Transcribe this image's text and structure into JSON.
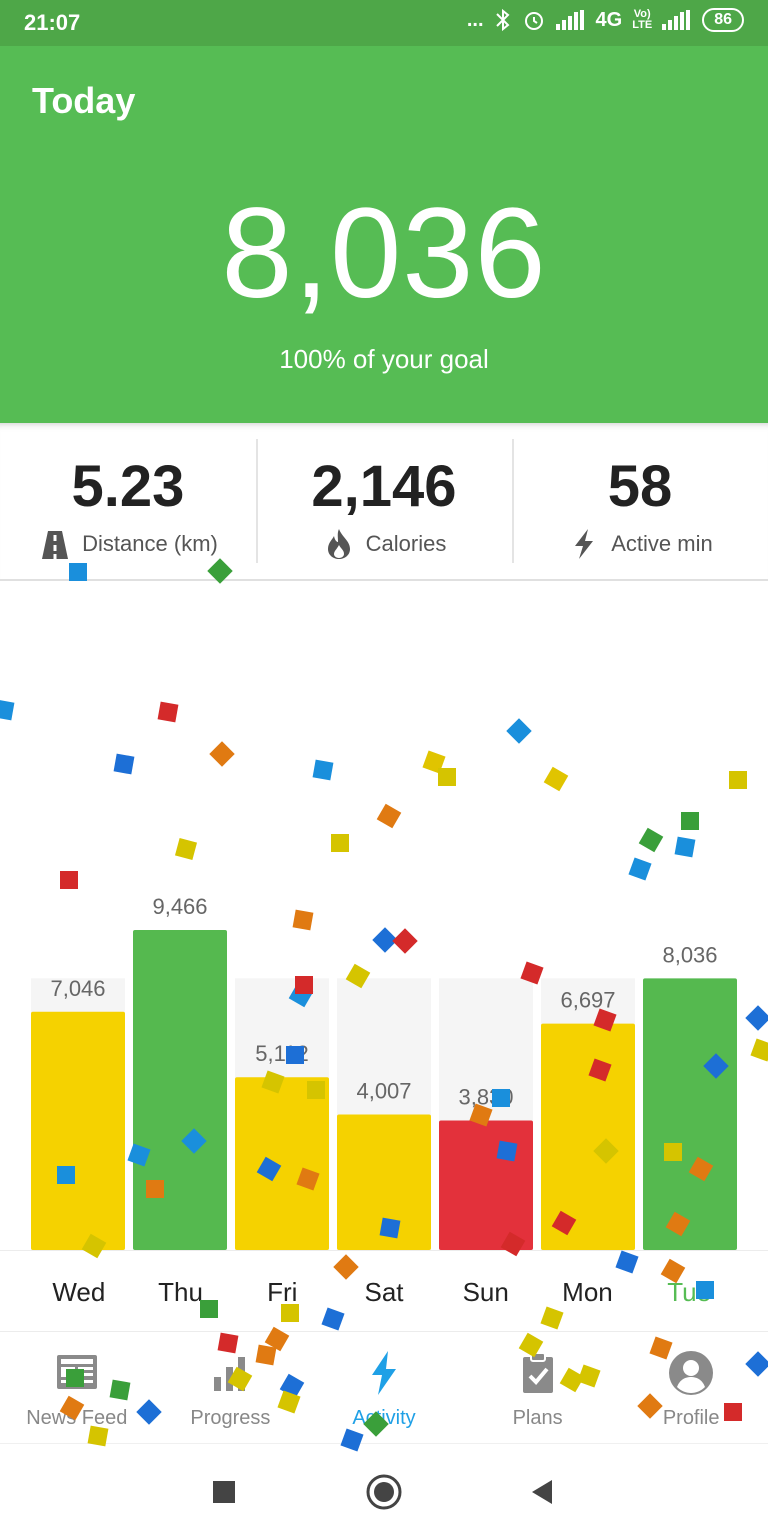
{
  "status_bar": {
    "time": "21:07",
    "dots": "...",
    "network": "4G",
    "volte_top": "Vo)",
    "volte_bottom": "LTE",
    "battery": "86"
  },
  "header": {
    "title": "Today",
    "steps": "8,036",
    "goal_text": "100% of your goal"
  },
  "stats": [
    {
      "value": "5.23",
      "label": "Distance (km)",
      "icon": "road-icon"
    },
    {
      "value": "2,146",
      "label": "Calories",
      "icon": "flame-icon"
    },
    {
      "value": "58",
      "label": "Active min",
      "icon": "lightning-icon"
    }
  ],
  "chart_data": {
    "type": "bar",
    "categories": [
      "Wed",
      "Thu",
      "Fri",
      "Sat",
      "Sun",
      "Mon",
      "Tue"
    ],
    "values": [
      7046,
      9466,
      5112,
      4007,
      3830,
      6697,
      8036
    ],
    "data_labels": [
      "7,046",
      "9,466",
      "5,112",
      "4,007",
      "3,830",
      "6,697",
      "8,036"
    ],
    "goal": 8036,
    "ylim": [
      0,
      9466
    ],
    "colors": {
      "goal_met": "#55b94f",
      "partial": "#f5d200",
      "low": "#e3313b",
      "background": "#f5f5f5"
    },
    "bar_colors": [
      "#f5d200",
      "#55b94f",
      "#f5d200",
      "#f5d200",
      "#e3313b",
      "#f5d200",
      "#55b94f"
    ]
  },
  "days": [
    {
      "label": "Wed",
      "active": false
    },
    {
      "label": "Thu",
      "active": false
    },
    {
      "label": "Fri",
      "active": false
    },
    {
      "label": "Sat",
      "active": false
    },
    {
      "label": "Sun",
      "active": false
    },
    {
      "label": "Mon",
      "active": false
    },
    {
      "label": "Tue",
      "active": true
    }
  ],
  "nav": [
    {
      "label": "News Feed",
      "icon": "news-feed-icon",
      "active": false
    },
    {
      "label": "Progress",
      "icon": "progress-icon",
      "active": false
    },
    {
      "label": "Activity",
      "icon": "activity-icon",
      "active": true
    },
    {
      "label": "Plans",
      "icon": "plans-icon",
      "active": false
    },
    {
      "label": "Profile",
      "icon": "profile-icon",
      "active": false
    }
  ],
  "colors": {
    "header_bg": "#56bc54",
    "status_bg": "#4ea748",
    "active_nav": "#1fa0e6",
    "active_day": "#56bc54"
  }
}
